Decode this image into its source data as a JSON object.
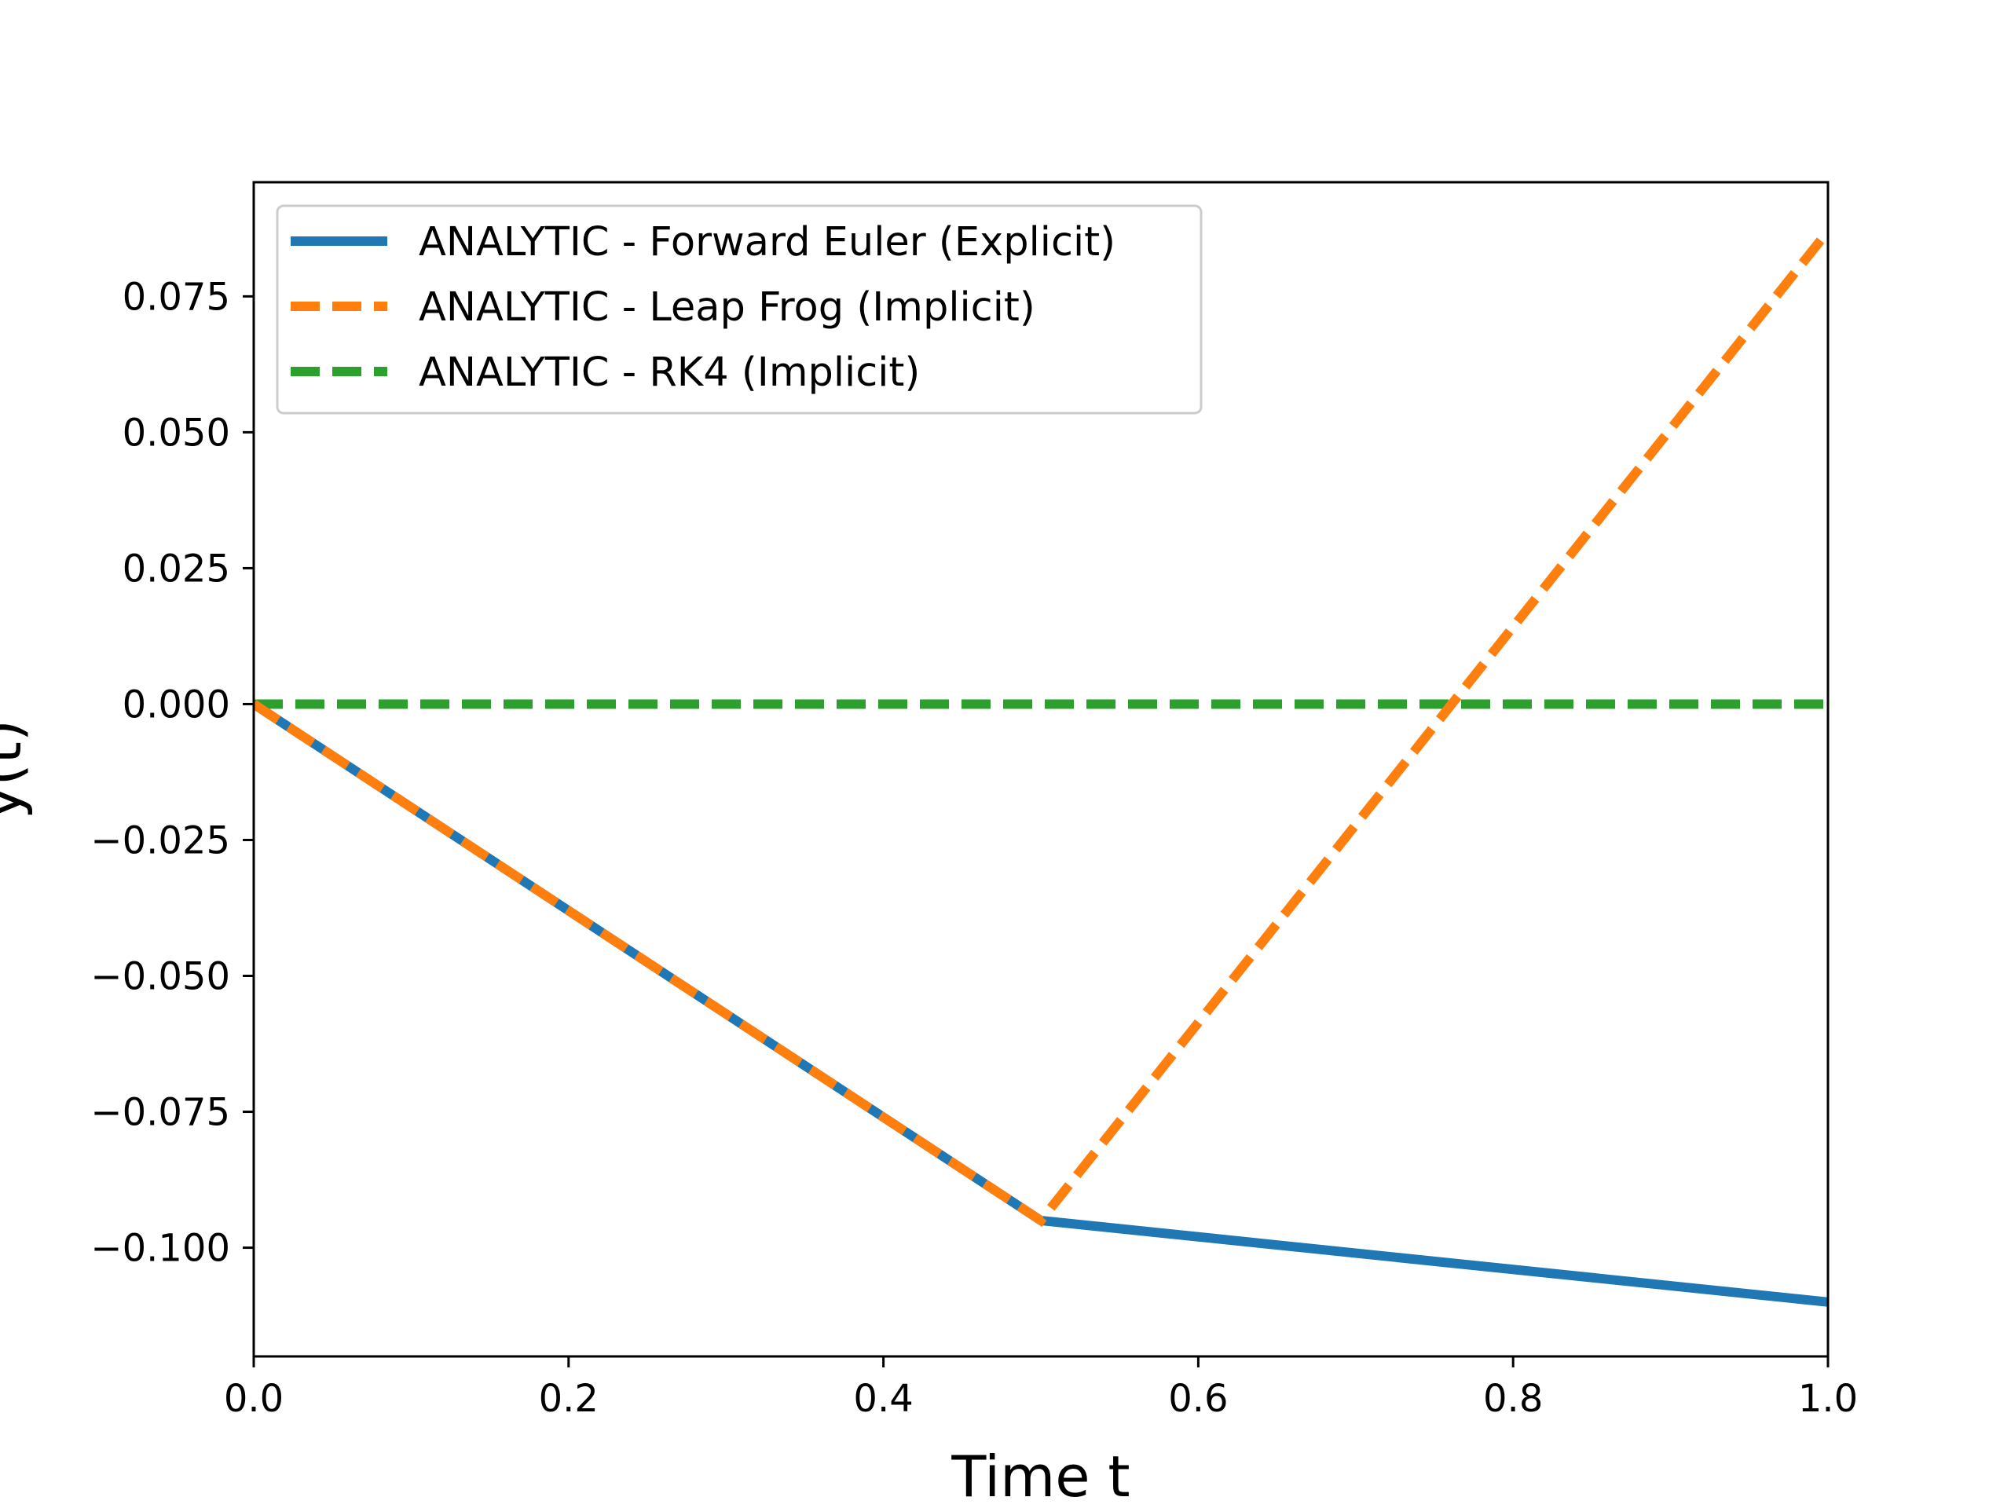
{
  "chart_data": {
    "type": "line",
    "title": "",
    "xlabel": "Time t",
    "ylabel": "y(t)",
    "xlim": [
      0.0,
      1.0
    ],
    "ylim": [
      -0.12,
      0.096
    ],
    "x_ticks": [
      "0.0",
      "0.2",
      "0.4",
      "0.6",
      "0.8",
      "1.0"
    ],
    "y_ticks": [
      "0.075",
      "0.050",
      "0.025",
      "0.000",
      "−0.025",
      "−0.050",
      "−0.075",
      "−0.100"
    ],
    "grid": false,
    "legend_position": "upper-left",
    "series": [
      {
        "name": "ANALYTIC - Forward Euler (Explicit)",
        "color": "#1f77b4",
        "style": "solid",
        "x": [
          0.0,
          0.5,
          1.0
        ],
        "y": [
          0.0,
          -0.095,
          -0.11
        ]
      },
      {
        "name": "ANALYTIC - Leap Frog (Implicit)",
        "color": "#ff7f0e",
        "style": "dashed",
        "x": [
          0.0,
          0.5,
          1.0
        ],
        "y": [
          0.0,
          -0.095,
          0.087
        ]
      },
      {
        "name": "ANALYTIC - RK4 (Implicit)",
        "color": "#2ca02c",
        "style": "dashed",
        "x": [
          0.0,
          1.0
        ],
        "y": [
          0.0,
          0.0
        ]
      }
    ]
  }
}
